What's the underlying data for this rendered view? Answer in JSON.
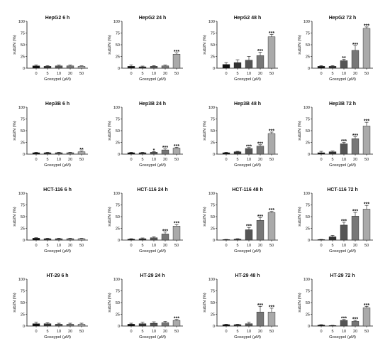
{
  "chart_data": [
    {
      "type": "bar",
      "title": "HepG2 6 h",
      "xlabel": "Gossypol (μM)",
      "ylabel": "sub2N (%)",
      "ylim": [
        0,
        100
      ],
      "yticks": [
        0,
        25,
        50,
        75,
        100
      ],
      "categories": [
        "0",
        "5",
        "10",
        "20",
        "50"
      ],
      "values": [
        5,
        4,
        5,
        5,
        4
      ],
      "errors": [
        2,
        1.5,
        1.5,
        1.5,
        1
      ],
      "annotations": [
        "",
        "",
        "",
        "",
        ""
      ],
      "colors": [
        "#111111",
        "#333333",
        "#555555",
        "#777777",
        "#aaaaaa"
      ]
    },
    {
      "type": "bar",
      "title": "HepG2 24 h",
      "xlabel": "Gossypol (μM)",
      "ylabel": "sub2N (%)",
      "ylim": [
        0,
        100
      ],
      "yticks": [
        0,
        25,
        50,
        75,
        100
      ],
      "categories": [
        "0",
        "5",
        "10",
        "20",
        "50"
      ],
      "values": [
        4,
        3,
        4,
        5,
        30
      ],
      "errors": [
        3,
        1.5,
        1.5,
        1.5,
        2.5
      ],
      "annotations": [
        "",
        "",
        "",
        "",
        "***"
      ],
      "colors": [
        "#111111",
        "#333333",
        "#555555",
        "#777777",
        "#aaaaaa"
      ]
    },
    {
      "type": "bar",
      "title": "HepG2 48 h",
      "xlabel": "Gossypol (μM)",
      "ylabel": "sub2N (%)",
      "ylim": [
        0,
        100
      ],
      "yticks": [
        0,
        25,
        50,
        75,
        100
      ],
      "categories": [
        "0",
        "5",
        "10",
        "20",
        "50"
      ],
      "values": [
        8,
        12,
        17,
        27,
        67
      ],
      "errors": [
        4,
        6,
        8,
        7,
        5
      ],
      "annotations": [
        "",
        "",
        "",
        "***",
        "***"
      ],
      "colors": [
        "#111111",
        "#333333",
        "#555555",
        "#777777",
        "#aaaaaa"
      ]
    },
    {
      "type": "bar",
      "title": "HepG2 72 h",
      "xlabel": "Gossypol (μM)",
      "ylabel": "sub2N (%)",
      "ylim": [
        0,
        100
      ],
      "yticks": [
        0,
        25,
        50,
        75,
        100
      ],
      "categories": [
        "0",
        "5",
        "10",
        "20",
        "50"
      ],
      "values": [
        4,
        4,
        16,
        38,
        85
      ],
      "errors": [
        1.5,
        1.5,
        3,
        10,
        3
      ],
      "annotations": [
        "",
        "",
        "**",
        "***",
        "***"
      ],
      "colors": [
        "#111111",
        "#333333",
        "#555555",
        "#777777",
        "#aaaaaa"
      ]
    },
    {
      "type": "bar",
      "title": "Hep3B 6 h",
      "xlabel": "Gossypol (μM)",
      "ylabel": "sub2N (%)",
      "ylim": [
        0,
        100
      ],
      "yticks": [
        0,
        25,
        50,
        75,
        100
      ],
      "categories": [
        "0",
        "5",
        "10",
        "20",
        "50"
      ],
      "values": [
        3,
        3,
        3,
        3,
        5
      ],
      "errors": [
        1,
        1,
        1,
        1,
        1.5
      ],
      "annotations": [
        "",
        "",
        "",
        "",
        "**"
      ],
      "colors": [
        "#111111",
        "#333333",
        "#555555",
        "#777777",
        "#aaaaaa"
      ]
    },
    {
      "type": "bar",
      "title": "Hep3B 24 h",
      "xlabel": "Gossypol (μM)",
      "ylabel": "sub2N (%)",
      "ylim": [
        0,
        100
      ],
      "yticks": [
        0,
        25,
        50,
        75,
        100
      ],
      "categories": [
        "0",
        "5",
        "10",
        "20",
        "50"
      ],
      "values": [
        3,
        3,
        4,
        9,
        13
      ],
      "errors": [
        1,
        1,
        1.5,
        2,
        1.5
      ],
      "annotations": [
        "",
        "",
        "*",
        "***",
        "***"
      ],
      "colors": [
        "#111111",
        "#333333",
        "#555555",
        "#777777",
        "#aaaaaa"
      ]
    },
    {
      "type": "bar",
      "title": "Hep3B 48 h",
      "xlabel": "Gossypol (μM)",
      "ylabel": "sub2N (%)",
      "ylim": [
        0,
        100
      ],
      "yticks": [
        0,
        25,
        50,
        75,
        100
      ],
      "categories": [
        "0",
        "5",
        "10",
        "20",
        "50"
      ],
      "values": [
        3,
        5,
        12,
        17,
        44
      ],
      "errors": [
        1,
        1,
        2,
        3,
        3
      ],
      "annotations": [
        "",
        "",
        "***",
        "***",
        "***"
      ],
      "colors": [
        "#111111",
        "#333333",
        "#555555",
        "#777777",
        "#aaaaaa"
      ]
    },
    {
      "type": "bar",
      "title": "Hep3B 72 h",
      "xlabel": "Gossypol (μM)",
      "ylabel": "sub2N (%)",
      "ylim": [
        0,
        100
      ],
      "yticks": [
        0,
        25,
        50,
        75,
        100
      ],
      "categories": [
        "0",
        "5",
        "10",
        "20",
        "50"
      ],
      "values": [
        3,
        5,
        22,
        33,
        60
      ],
      "errors": [
        3,
        1.5,
        3,
        4,
        8
      ],
      "annotations": [
        "",
        "",
        "***",
        "***",
        "***"
      ],
      "colors": [
        "#111111",
        "#333333",
        "#555555",
        "#777777",
        "#aaaaaa"
      ]
    },
    {
      "type": "bar",
      "title": "HCT-116 6 h",
      "xlabel": "Gossypol (μM)",
      "ylabel": "sub2N (%)",
      "ylim": [
        0,
        100
      ],
      "yticks": [
        0,
        25,
        50,
        75,
        100
      ],
      "categories": [
        "0",
        "5",
        "10",
        "20",
        "50"
      ],
      "values": [
        4,
        3,
        3,
        3,
        3
      ],
      "errors": [
        1,
        1,
        1,
        1,
        1
      ],
      "annotations": [
        "",
        "",
        "",
        "",
        ""
      ],
      "colors": [
        "#111111",
        "#333333",
        "#555555",
        "#777777",
        "#aaaaaa"
      ]
    },
    {
      "type": "bar",
      "title": "HCT-116 24 h",
      "xlabel": "Gossypol (μM)",
      "ylabel": "sub2N (%)",
      "ylim": [
        0,
        100
      ],
      "yticks": [
        0,
        25,
        50,
        75,
        100
      ],
      "categories": [
        "0",
        "5",
        "10",
        "20",
        "50"
      ],
      "values": [
        2,
        3,
        5,
        13,
        30
      ],
      "errors": [
        1,
        1.5,
        2,
        4,
        3
      ],
      "annotations": [
        "",
        "",
        "",
        "***",
        "***"
      ],
      "colors": [
        "#111111",
        "#333333",
        "#555555",
        "#777777",
        "#aaaaaa"
      ]
    },
    {
      "type": "bar",
      "title": "HCT-116 48 h",
      "xlabel": "Gossypol (μM)",
      "ylabel": "sub2N (%)",
      "ylim": [
        0,
        100
      ],
      "yticks": [
        0,
        25,
        50,
        75,
        100
      ],
      "categories": [
        "0",
        "5",
        "10",
        "20",
        "50"
      ],
      "values": [
        1,
        2,
        22,
        42,
        59
      ],
      "errors": [
        0.5,
        1,
        5,
        6,
        2
      ],
      "annotations": [
        "",
        "",
        "***",
        "***",
        "***"
      ],
      "colors": [
        "#111111",
        "#333333",
        "#555555",
        "#777777",
        "#aaaaaa"
      ]
    },
    {
      "type": "bar",
      "title": "HCT-116 72 h",
      "xlabel": "Gossypol (μM)",
      "ylabel": "sub2N (%)",
      "ylim": [
        0,
        100
      ],
      "yticks": [
        0,
        25,
        50,
        75,
        100
      ],
      "categories": [
        "0",
        "5",
        "10",
        "20",
        "50"
      ],
      "values": [
        1,
        7,
        32,
        51,
        66
      ],
      "errors": [
        0.5,
        3,
        6,
        8,
        8
      ],
      "annotations": [
        "",
        "",
        "***",
        "***",
        "***"
      ],
      "colors": [
        "#111111",
        "#333333",
        "#555555",
        "#777777",
        "#aaaaaa"
      ]
    },
    {
      "type": "bar",
      "title": "HT-29 6 h",
      "xlabel": "Gossypol (μM)",
      "ylabel": "sub2N (%)",
      "ylim": [
        0,
        100
      ],
      "yticks": [
        0,
        25,
        50,
        75,
        100
      ],
      "categories": [
        "0",
        "5",
        "10",
        "20",
        "50"
      ],
      "values": [
        5,
        5,
        4,
        4,
        4
      ],
      "errors": [
        3,
        2,
        2,
        2,
        2
      ],
      "annotations": [
        "",
        "",
        "",
        "",
        ""
      ],
      "colors": [
        "#111111",
        "#333333",
        "#555555",
        "#777777",
        "#aaaaaa"
      ]
    },
    {
      "type": "bar",
      "title": "HT-29 24 h",
      "xlabel": "Gossypol (μM)",
      "ylabel": "sub2N (%)",
      "ylim": [
        0,
        100
      ],
      "yticks": [
        0,
        25,
        50,
        75,
        100
      ],
      "categories": [
        "0",
        "5",
        "10",
        "20",
        "50"
      ],
      "values": [
        4,
        5,
        6,
        7,
        12
      ],
      "errors": [
        2,
        3,
        3,
        3,
        2
      ],
      "annotations": [
        "",
        "",
        "",
        "",
        "***"
      ],
      "colors": [
        "#111111",
        "#333333",
        "#555555",
        "#777777",
        "#aaaaaa"
      ]
    },
    {
      "type": "bar",
      "title": "HT-29 48 h",
      "xlabel": "Gossypol (μM)",
      "ylabel": "sub2N (%)",
      "ylim": [
        0,
        100
      ],
      "yticks": [
        0,
        25,
        50,
        75,
        100
      ],
      "categories": [
        "0",
        "5",
        "10",
        "20",
        "50"
      ],
      "values": [
        3,
        3,
        5,
        30,
        30
      ],
      "errors": [
        1,
        1,
        3,
        12,
        8
      ],
      "annotations": [
        "",
        "",
        "",
        "***",
        "***"
      ],
      "colors": [
        "#111111",
        "#333333",
        "#555555",
        "#777777",
        "#aaaaaa"
      ]
    },
    {
      "type": "bar",
      "title": "HT-29 72 h",
      "xlabel": "Gossypol (μM)",
      "ylabel": "sub2N (%)",
      "ylim": [
        0,
        100
      ],
      "yticks": [
        0,
        25,
        50,
        75,
        100
      ],
      "categories": [
        "0",
        "5",
        "10",
        "20",
        "50"
      ],
      "values": [
        2,
        1,
        12,
        10,
        39
      ],
      "errors": [
        1,
        0.5,
        2,
        2,
        3
      ],
      "annotations": [
        "",
        "",
        "***",
        "***",
        "***"
      ],
      "colors": [
        "#111111",
        "#333333",
        "#555555",
        "#777777",
        "#aaaaaa"
      ]
    }
  ]
}
